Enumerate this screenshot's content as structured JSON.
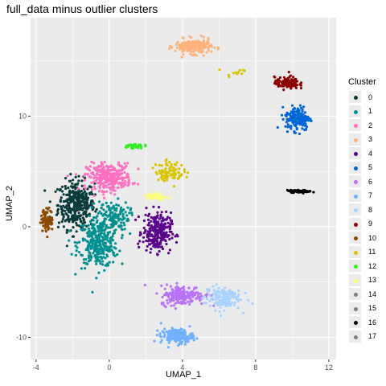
{
  "chart_data": {
    "type": "scatter",
    "title": "full_data minus outlier clusters",
    "xlabel": "UMAP_1",
    "ylabel": "UMAP_2",
    "xlim": [
      -4.3,
      12.4
    ],
    "ylim": [
      -12.0,
      18.9
    ],
    "x_ticks": [
      -4,
      0,
      4,
      8,
      12
    ],
    "y_ticks": [
      -10,
      0,
      10
    ],
    "x_tick_labels": [
      "-4",
      "0",
      "4",
      "8",
      "12"
    ],
    "y_tick_labels": [
      "-10",
      "0",
      "10"
    ],
    "grid": true,
    "legend_title": "Cluster",
    "legend_position": "right",
    "series": [
      {
        "name": "0",
        "color": "#0a3b3b",
        "clusters": [
          {
            "x": -1.8,
            "y": 2.0,
            "sx": 0.9,
            "sy": 2.0,
            "n": 360
          }
        ]
      },
      {
        "name": "1",
        "color": "#009090",
        "clusters": [
          {
            "x": -0.6,
            "y": -1.5,
            "sx": 1.0,
            "sy": 2.0,
            "n": 340
          },
          {
            "x": 0.2,
            "y": 1.0,
            "sx": 0.8,
            "sy": 1.2,
            "n": 120
          }
        ]
      },
      {
        "name": "2",
        "color": "#ff6fbf",
        "clusters": [
          {
            "x": 0.0,
            "y": 4.5,
            "sx": 1.1,
            "sy": 1.1,
            "n": 300
          }
        ]
      },
      {
        "name": "3",
        "color": "#ffb37a",
        "clusters": [
          {
            "x": 4.6,
            "y": 16.3,
            "sx": 0.9,
            "sy": 0.6,
            "n": 200
          }
        ]
      },
      {
        "name": "4",
        "color": "#5a058c",
        "clusters": [
          {
            "x": 2.6,
            "y": -0.5,
            "sx": 0.7,
            "sy": 1.6,
            "n": 260
          }
        ]
      },
      {
        "name": "5",
        "color": "#0066d6",
        "clusters": [
          {
            "x": 10.3,
            "y": 9.8,
            "sx": 0.6,
            "sy": 1.0,
            "n": 180
          }
        ]
      },
      {
        "name": "6",
        "color": "#b873f7",
        "clusters": [
          {
            "x": 4.0,
            "y": -6.2,
            "sx": 1.1,
            "sy": 0.8,
            "n": 200
          }
        ]
      },
      {
        "name": "7",
        "color": "#70b0ff",
        "clusters": [
          {
            "x": 3.7,
            "y": -9.9,
            "sx": 0.8,
            "sy": 0.6,
            "n": 170
          }
        ]
      },
      {
        "name": "8",
        "color": "#a8d2ff",
        "clusters": [
          {
            "x": 6.2,
            "y": -6.4,
            "sx": 0.9,
            "sy": 1.0,
            "n": 140
          }
        ]
      },
      {
        "name": "9",
        "color": "#8c0000",
        "clusters": [
          {
            "x": 9.7,
            "y": 13.0,
            "sx": 0.6,
            "sy": 0.5,
            "n": 110
          }
        ]
      },
      {
        "name": "10",
        "color": "#8c4a00",
        "clusters": [
          {
            "x": -3.4,
            "y": 0.6,
            "sx": 0.3,
            "sy": 0.9,
            "n": 90
          }
        ]
      },
      {
        "name": "11",
        "color": "#d9c400",
        "clusters": [
          {
            "x": 3.3,
            "y": 5.0,
            "sx": 0.7,
            "sy": 0.8,
            "n": 90
          },
          {
            "x": 7.0,
            "y": 14.0,
            "sx": 0.6,
            "sy": 0.4,
            "n": 12
          }
        ]
      },
      {
        "name": "12",
        "color": "#33ee22",
        "clusters": [
          {
            "x": 1.3,
            "y": 7.3,
            "sx": 0.5,
            "sy": 0.2,
            "n": 40
          }
        ]
      },
      {
        "name": "13",
        "color": "#ffff7a",
        "clusters": [
          {
            "x": 2.6,
            "y": 2.7,
            "sx": 0.5,
            "sy": 0.35,
            "n": 45
          }
        ]
      },
      {
        "name": "14",
        "color": "#7f7f7f",
        "clusters": []
      },
      {
        "name": "15",
        "color": "#7f7f7f",
        "clusters": []
      },
      {
        "name": "16",
        "color": "#000000",
        "clusters": [
          {
            "x": 10.4,
            "y": 3.2,
            "sx": 0.6,
            "sy": 0.1,
            "n": 60
          }
        ]
      },
      {
        "name": "17",
        "color": "#7f7f7f",
        "clusters": []
      }
    ]
  }
}
